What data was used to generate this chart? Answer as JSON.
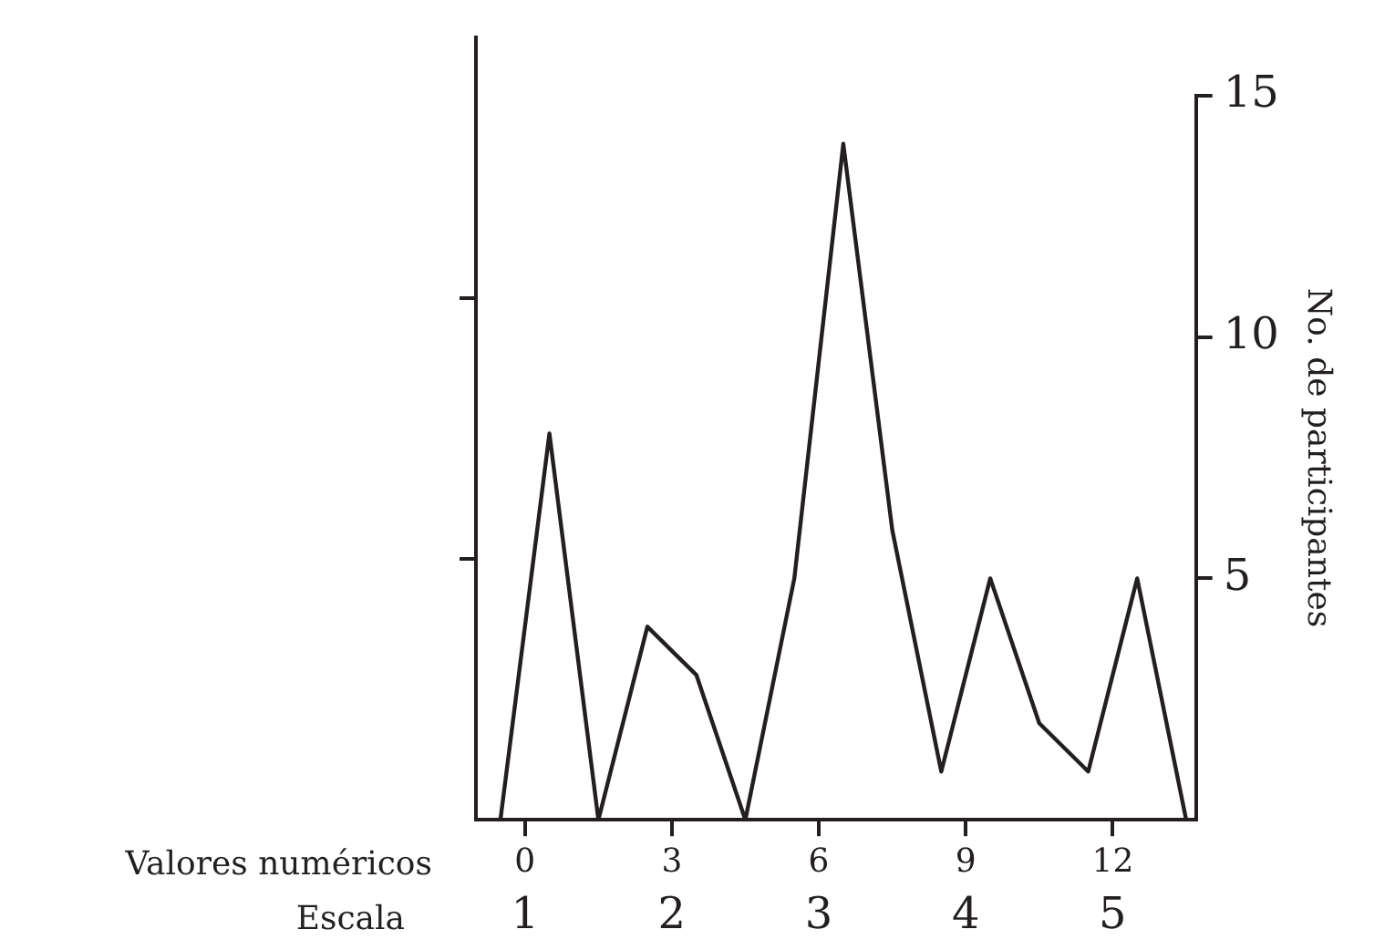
{
  "chart_data": {
    "type": "line",
    "xlabel": "Valores numéricos",
    "x2label": "Escala",
    "y2label": "No. de participantes",
    "x": [
      -0.5,
      0.5,
      1.5,
      2.5,
      3.5,
      4.5,
      5.5,
      6.5,
      7.5,
      8.5,
      9.5,
      10.5,
      11.5,
      12.5,
      13.5
    ],
    "series": [
      {
        "color": "#231f20",
        "axis": "y2",
        "values": [
          0,
          8,
          0,
          4,
          3,
          0,
          5,
          14,
          6,
          1,
          5,
          2,
          1,
          5,
          0
        ]
      }
    ],
    "xlim": [
      -1,
      13.7
    ],
    "xticks": [
      0,
      3,
      6,
      9,
      12
    ],
    "x2lim": [
      0.6667,
      5.5667
    ],
    "x2ticks": [
      1,
      2,
      3,
      4,
      5
    ],
    "y2lim": [
      0,
      15
    ],
    "y2ticks": [
      5,
      10,
      15
    ],
    "legend": false,
    "grid": false,
    "marker": "none",
    "line_style": "solid"
  }
}
